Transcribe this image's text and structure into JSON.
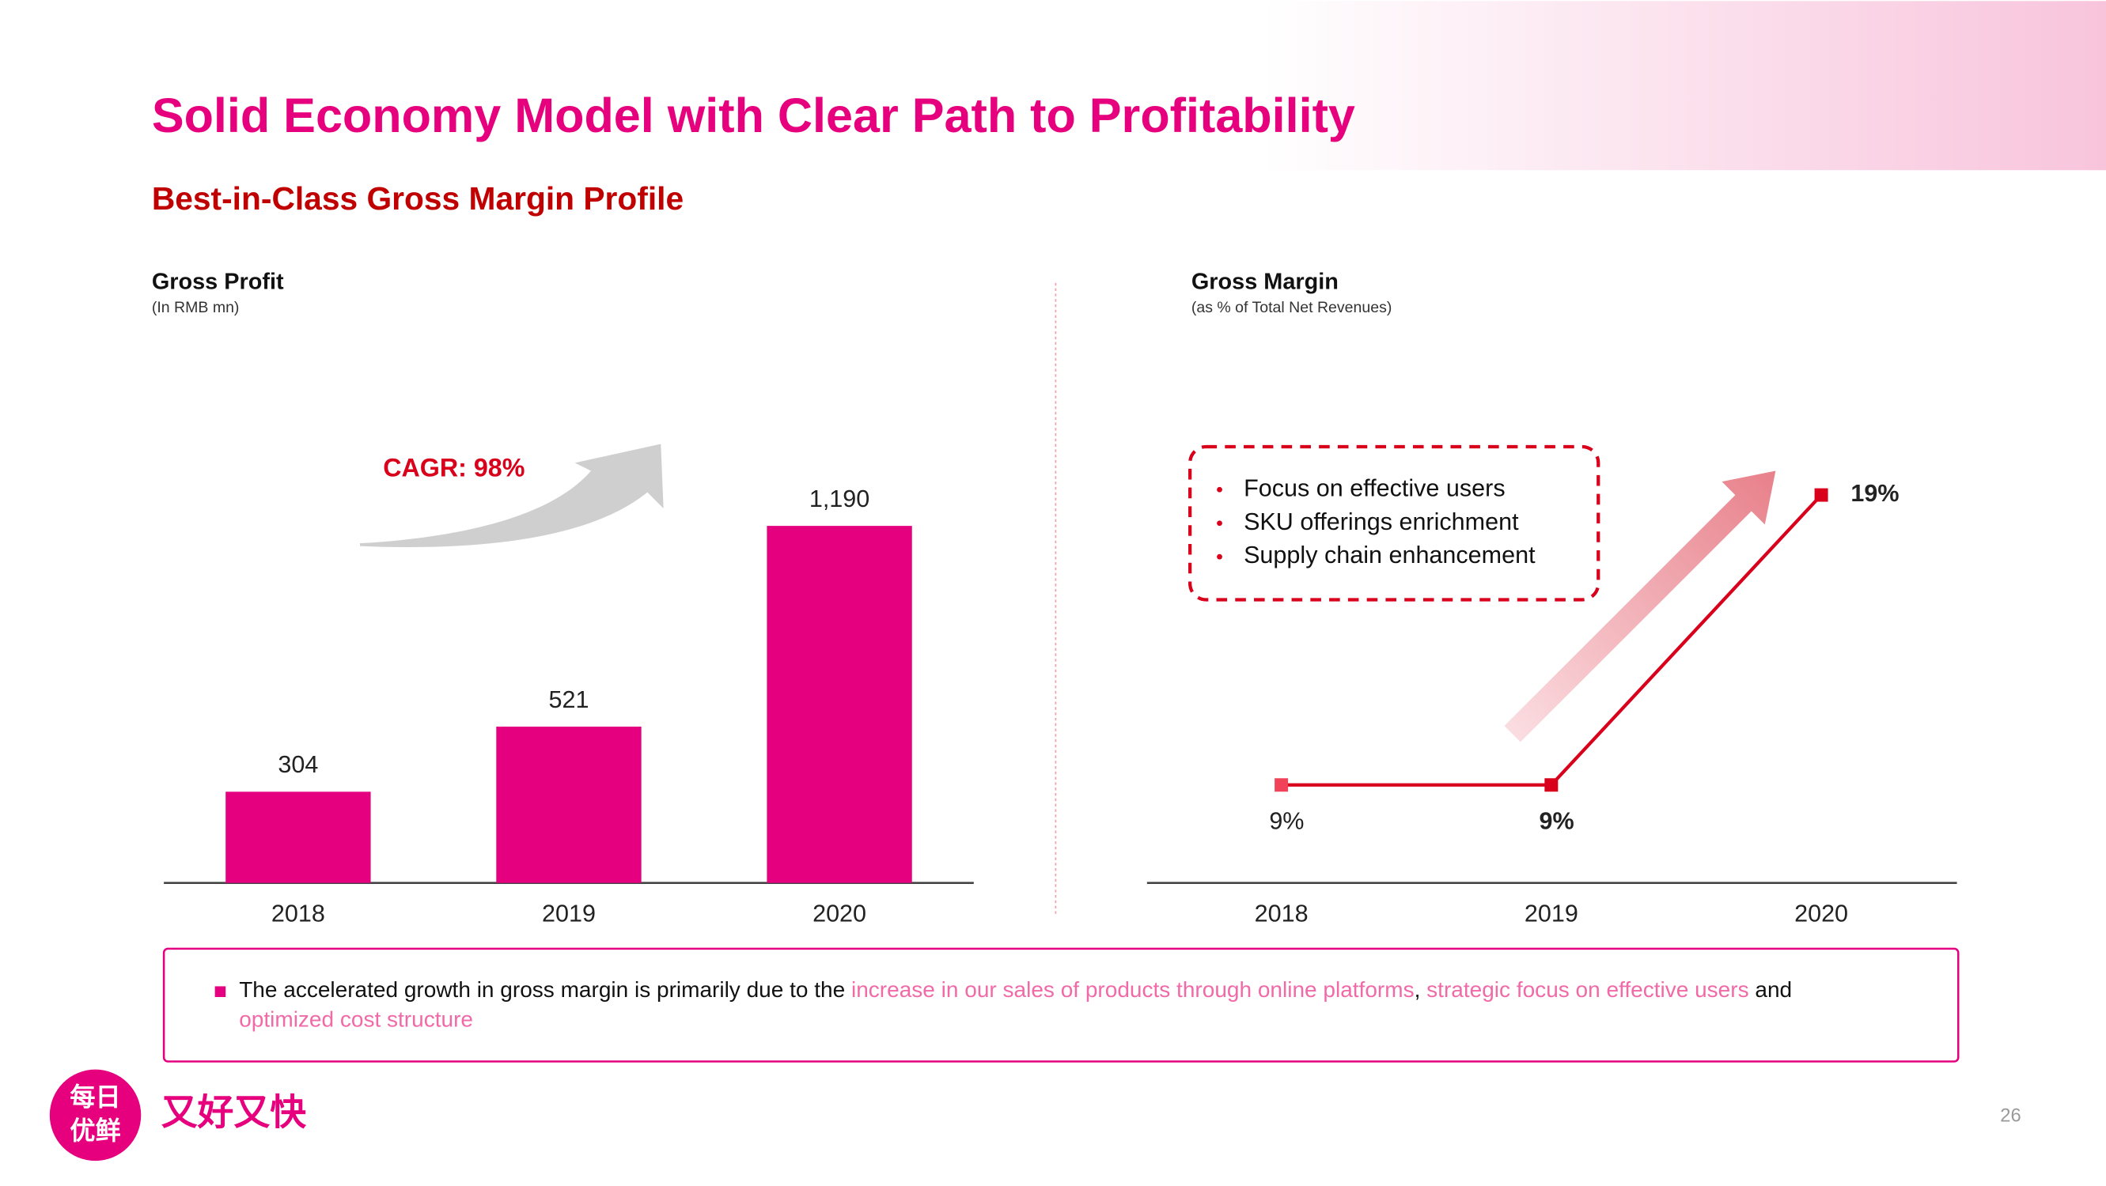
{
  "header": {
    "title": "Solid Economy Model with Clear Path to Profitability",
    "subtitle": "Best-in-Class Gross Margin Profile"
  },
  "chart_data": [
    {
      "type": "bar",
      "title": "Gross Profit",
      "subtitle": "(In RMB mn)",
      "annotation": "CAGR: 98%",
      "categories": [
        "2018",
        "2019",
        "2020"
      ],
      "values": [
        304,
        521,
        1190
      ],
      "value_labels": [
        "304",
        "521",
        "1,190"
      ],
      "color": "#e4007f"
    },
    {
      "type": "line",
      "title": "Gross Margin",
      "subtitle": "(as % of Total Net Revenues)",
      "annotation": [
        "Focus on effective users",
        "SKU offerings enrichment",
        "Supply chain enhancement"
      ],
      "categories": [
        "2018",
        "2019",
        "2020"
      ],
      "values": [
        9,
        9,
        19
      ],
      "value_labels": [
        "9%",
        "9%",
        "19%"
      ],
      "color": "#d9001b"
    }
  ],
  "footnote": [
    "The accelerated growth in gross margin is primarily due to the ",
    "increase in our sales of products through online platforms",
    ", ",
    "strategic focus on effective users",
    " and ",
    "optimized cost structure"
  ],
  "footer": {
    "logo": [
      "每日",
      "优鲜"
    ],
    "slogan": "又好又快",
    "page": "26"
  }
}
